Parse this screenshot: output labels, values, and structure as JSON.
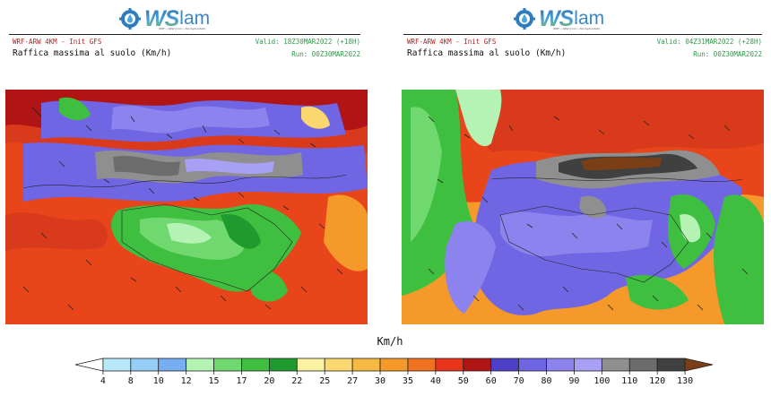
{
  "logo": {
    "brand_ws": "WS",
    "brand_lam": "lam",
    "tagline": "WRF • ARW 4 km • Nonhydrostatic"
  },
  "panels": [
    {
      "model": "WRF-ARW 4KM - Init GFS",
      "valid": "Valid: 18Z30MAR2022 (+18H)",
      "variable": "Raffica massima al suolo (Km/h)",
      "run": "Run: 00Z30MAR2022",
      "map_description": "Wind gust map over Sicily and Calabria"
    },
    {
      "model": "WRF-ARW 4KM - Init GFS",
      "valid": "Valid: 04Z31MAR2022 (+28H)",
      "variable": "Raffica massima al suolo (Km/h)",
      "run": "Run: 00Z30MAR2022",
      "map_description": "Wind gust map over Sicily and Calabria"
    }
  ],
  "colorbar": {
    "unit": "Km/h",
    "ticks": [
      "4",
      "8",
      "10",
      "12",
      "15",
      "17",
      "20",
      "22",
      "25",
      "27",
      "30",
      "35",
      "40",
      "50",
      "60",
      "70",
      "80",
      "90",
      "100",
      "110",
      "120",
      "130"
    ],
    "colors": [
      "#ffffff",
      "#b9e8fb",
      "#96cdf6",
      "#76aef1",
      "#b4f3b4",
      "#6fd86f",
      "#3fbf3f",
      "#1f9a2f",
      "#fbf3a2",
      "#fbd770",
      "#f6ba43",
      "#f59a2a",
      "#f0711f",
      "#e8351a",
      "#b01414",
      "#4e3fc8",
      "#7066e3",
      "#8c83ee",
      "#a8a0f5",
      "#8f8f8f",
      "#6c6c6c",
      "#404040",
      "#7a3f16"
    ]
  }
}
